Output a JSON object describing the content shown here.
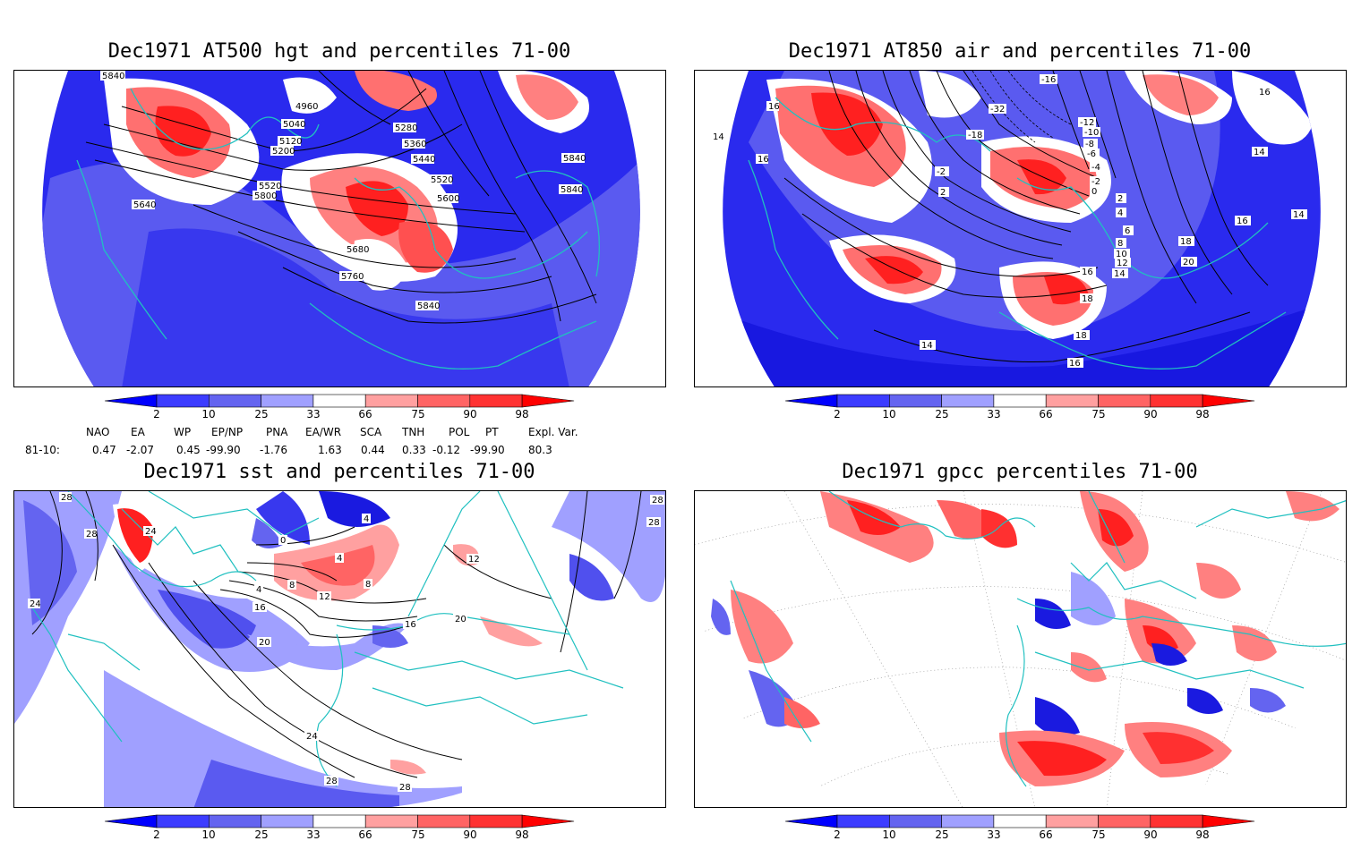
{
  "panels": [
    {
      "title": "Dec1971 AT500 hgt and percentiles 71-00",
      "contour_labels": [
        "5840",
        "4960",
        "5040",
        "5120",
        "5200",
        "5280",
        "5360",
        "5440",
        "5520",
        "5600",
        "5520",
        "5800",
        "5640",
        "5680",
        "5760",
        "5840",
        "5840",
        "5840"
      ]
    },
    {
      "title": "Dec1971 AT850 air and percentiles 71-00",
      "contour_labels": [
        "16",
        "14",
        "16",
        "-16",
        "-18",
        "-32",
        "-12",
        "-10",
        "-8",
        "-6",
        "-4",
        "-2",
        "0",
        "2",
        "4",
        "6",
        "8",
        "10",
        "12",
        "14",
        "16",
        "18",
        "20",
        "16",
        "18",
        "14",
        "16",
        "14",
        "18",
        "16",
        "14",
        "2",
        "-2"
      ]
    },
    {
      "title": "Dec1971 sst and percentiles 71-00",
      "contour_labels": [
        "28",
        "28",
        "24",
        "24",
        "0",
        "4",
        "4",
        "8",
        "12",
        "16",
        "20",
        "20",
        "24",
        "28",
        "28",
        "12",
        "16",
        "28",
        "28",
        "4",
        "8"
      ]
    },
    {
      "title": "Dec1971 gpcc percentiles 71-00",
      "contour_labels": []
    }
  ],
  "colorbar": {
    "ticks": [
      "2",
      "10",
      "25",
      "33",
      "66",
      "75",
      "90",
      "98"
    ],
    "colors": [
      "#0000ff",
      "#3c3cff",
      "#6464f0",
      "#a0a0ff",
      "#ffffff",
      "#ffa0a0",
      "#ff6464",
      "#ff3232",
      "#ff0000"
    ]
  },
  "indices": {
    "headers": [
      "NAO",
      "EA",
      "WP",
      "EP/NP",
      "PNA",
      "EA/WR",
      "SCA",
      "TNH",
      "POL",
      "PT",
      "Expl. Var."
    ],
    "row_label": "81-10:",
    "values": [
      "0.47",
      "-2.07",
      "0.45",
      "-99.90",
      "-1.76",
      "1.63",
      "0.44",
      "0.33",
      "-0.12",
      "-99.90",
      "80.3"
    ]
  },
  "colors": {
    "blue": "#2222ee",
    "mid_blue": "#5a5af0",
    "light_blue": "#a0a0ff",
    "light_red": "#ffa0a0",
    "red": "#ff5050",
    "dark_red": "#ff0000",
    "coast": "#20c0c0"
  }
}
